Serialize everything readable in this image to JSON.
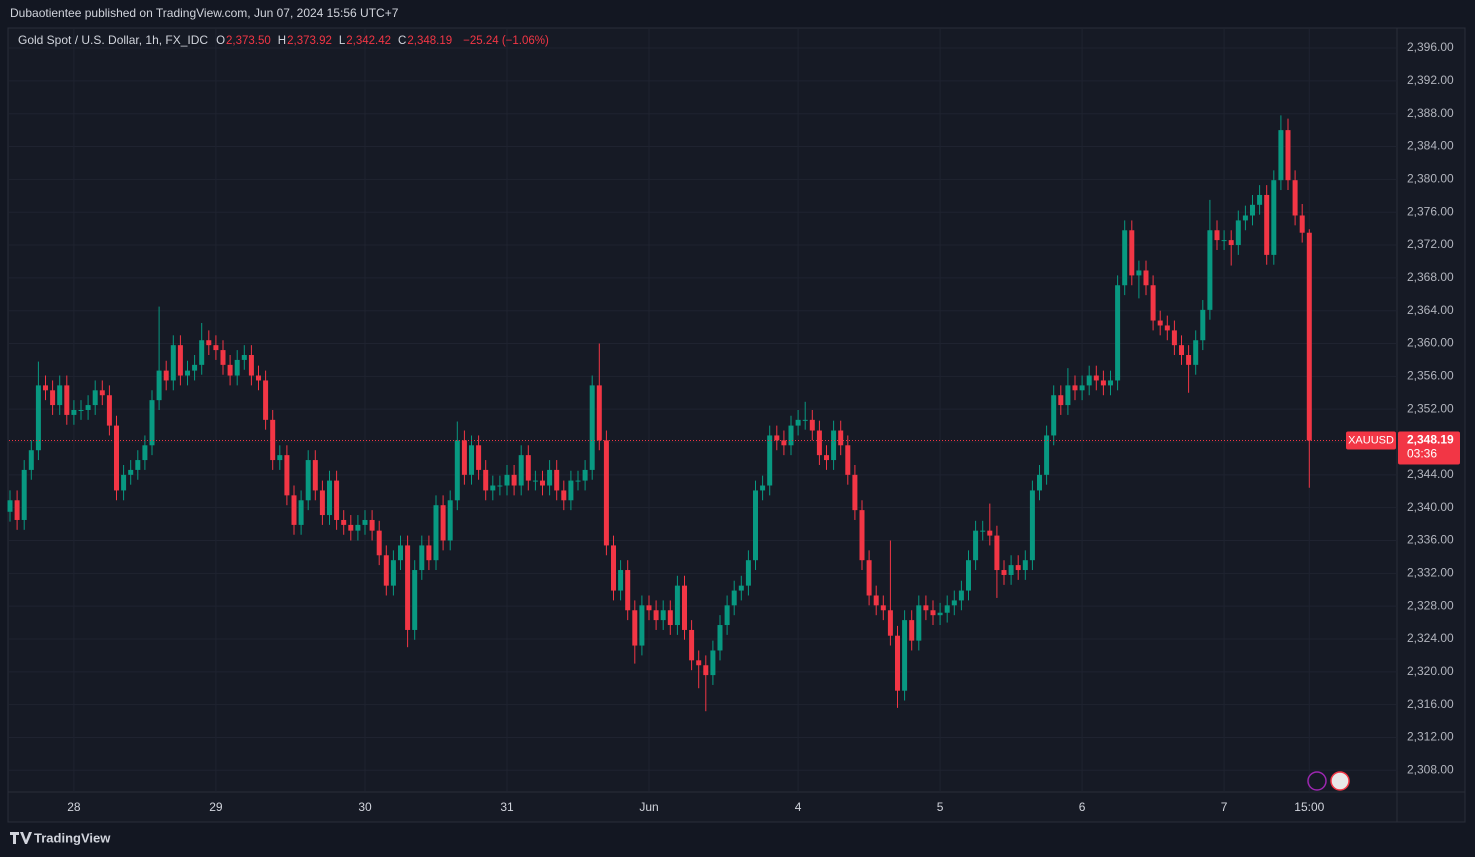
{
  "chart_data": {
    "type": "candlestick",
    "header": "Dubaotientee published on TradingView.com, Jun 07, 2024 15:56 UTC+7",
    "title": "Gold Spot / U.S. Dollar, 1h, FX_IDC",
    "ohlc_legend": {
      "o_key": "O",
      "open": "2,373.50",
      "h_key": "H",
      "high": "2,373.92",
      "l_key": "L",
      "low": "2,342.42",
      "c_key": "C",
      "close": "2,348.19",
      "change": "−25.24 (−1.06%)"
    },
    "symbol": "XAUUSD",
    "countdown": "03:36",
    "footer": "TradingView",
    "up_color": "#089981",
    "down_color": "#f23645",
    "grid": true,
    "open": [
      2339.5,
      2340.9,
      2338.5,
      2344.6,
      2347.0,
      2354.9,
      2354.3,
      2352.5,
      2354.9,
      2351.3,
      2351.9,
      2351.9,
      2352.5,
      2354.3,
      2353.7,
      2350.0,
      2342.1,
      2344.0,
      2344.6,
      2345.8,
      2347.6,
      2353.1,
      2356.7,
      2355.5,
      2359.8,
      2356.1,
      2356.7,
      2357.4,
      2360.4,
      2359.8,
      2359.2,
      2357.4,
      2356.1,
      2358.0,
      2358.6,
      2356.1,
      2355.5,
      2350.7,
      2345.8,
      2346.4,
      2341.5,
      2337.9,
      2340.9,
      2345.8,
      2342.1,
      2339.1,
      2343.3,
      2338.5,
      2337.9,
      2337.2,
      2337.9,
      2338.5,
      2337.2,
      2334.2,
      2330.5,
      2333.6,
      2335.4,
      2325.1,
      2332.4,
      2335.4,
      2333.6,
      2340.3,
      2336.0,
      2340.9,
      2348.2,
      2344.0,
      2347.6,
      2344.6,
      2342.1,
      2342.7,
      2342.7,
      2344.0,
      2342.7,
      2346.4,
      2343.3,
      2343.3,
      2342.7,
      2344.6,
      2342.1,
      2340.9,
      2343.3,
      2343.3,
      2344.6,
      2354.9,
      2348.2,
      2335.4,
      2329.9,
      2332.4,
      2327.5,
      2323.2,
      2328.1,
      2327.5,
      2326.3,
      2327.5,
      2325.7,
      2330.5,
      2325.1,
      2321.4,
      2320.8,
      2319.6,
      2322.6,
      2325.7,
      2328.1,
      2329.9,
      2330.5,
      2333.6,
      2342.1,
      2342.7,
      2348.8,
      2348.2,
      2347.6,
      2350.0,
      2350.7,
      2350.7,
      2349.4,
      2346.4,
      2345.8,
      2349.4,
      2347.6,
      2344.0,
      2339.7,
      2333.6,
      2329.3,
      2328.1,
      2327.5,
      2324.4,
      2317.7,
      2326.3,
      2323.8,
      2328.1,
      2327.5,
      2326.9,
      2327.2,
      2328.1,
      2328.7,
      2329.9,
      2333.6,
      2337.2,
      2337.2,
      2336.6,
      2332.4,
      2331.8,
      2333.0,
      2332.4,
      2333.6,
      2342.1,
      2344.0,
      2348.8,
      2353.7,
      2352.5,
      2354.9,
      2354.3,
      2354.9,
      2356.1,
      2355.5,
      2354.9,
      2355.5,
      2367.1,
      2373.8,
      2368.3,
      2368.9,
      2367.1,
      2362.8,
      2362.2,
      2361.6,
      2359.8,
      2358.6,
      2357.4,
      2360.4,
      2364.1,
      2373.8,
      2372.6,
      2372.6,
      2372.0,
      2375.0,
      2375.6,
      2376.9,
      2378.1,
      2370.8,
      2379.9,
      2386.0,
      2379.9,
      2375.6,
      2373.5
    ],
    "high": [
      2342.1,
      2342.1,
      2345.8,
      2348.2,
      2357.8,
      2356.1,
      2355.5,
      2356.1,
      2356.1,
      2353.1,
      2353.1,
      2353.7,
      2355.5,
      2355.5,
      2354.9,
      2351.2,
      2345.2,
      2345.8,
      2347.0,
      2348.8,
      2354.3,
      2364.5,
      2357.9,
      2361.0,
      2361.0,
      2357.9,
      2358.6,
      2362.5,
      2361.6,
      2361.0,
      2360.4,
      2358.6,
      2359.2,
      2359.8,
      2359.8,
      2357.3,
      2356.7,
      2351.9,
      2347.6,
      2347.6,
      2342.7,
      2342.1,
      2347.0,
      2347.0,
      2343.3,
      2344.5,
      2344.5,
      2339.7,
      2339.1,
      2339.1,
      2339.7,
      2339.7,
      2338.4,
      2335.4,
      2334.8,
      2336.6,
      2336.6,
      2333.6,
      2336.6,
      2336.6,
      2341.5,
      2341.5,
      2342.1,
      2350.5,
      2349.4,
      2348.8,
      2348.8,
      2345.8,
      2343.9,
      2343.9,
      2345.2,
      2345.2,
      2347.6,
      2347.6,
      2344.5,
      2344.5,
      2345.8,
      2345.8,
      2343.3,
      2344.5,
      2344.5,
      2345.8,
      2356.1,
      2360.0,
      2349.4,
      2336.6,
      2333.6,
      2333.6,
      2328.7,
      2329.3,
      2329.3,
      2328.7,
      2328.7,
      2328.7,
      2331.7,
      2331.7,
      2326.3,
      2322.6,
      2322.0,
      2323.8,
      2326.9,
      2329.3,
      2331.1,
      2331.7,
      2334.8,
      2343.3,
      2343.9,
      2350.0,
      2350.0,
      2349.4,
      2351.2,
      2351.9,
      2352.9,
      2351.9,
      2350.6,
      2347.6,
      2350.6,
      2350.6,
      2348.8,
      2345.2,
      2340.9,
      2334.8,
      2330.5,
      2329.3,
      2336.0,
      2325.6,
      2327.5,
      2327.5,
      2329.3,
      2329.3,
      2328.7,
      2328.4,
      2329.3,
      2329.9,
      2331.1,
      2334.8,
      2338.4,
      2338.4,
      2340.5,
      2337.8,
      2333.6,
      2334.2,
      2334.2,
      2334.8,
      2343.3,
      2345.2,
      2350.0,
      2354.9,
      2354.9,
      2357.0,
      2356.1,
      2356.1,
      2357.3,
      2357.3,
      2356.7,
      2356.7,
      2368.3,
      2375.0,
      2375.0,
      2370.1,
      2370.1,
      2368.3,
      2364.0,
      2363.4,
      2362.8,
      2361.0,
      2359.8,
      2361.6,
      2365.3,
      2377.5,
      2375.0,
      2373.8,
      2373.8,
      2376.2,
      2376.8,
      2378.1,
      2379.3,
      2379.3,
      2381.1,
      2387.8,
      2387.4,
      2381.1,
      2377.0,
      2373.92
    ],
    "low": [
      2338.3,
      2337.3,
      2337.3,
      2343.4,
      2345.8,
      2353.1,
      2351.3,
      2351.3,
      2350.1,
      2350.1,
      2350.7,
      2350.7,
      2351.3,
      2352.5,
      2348.8,
      2340.9,
      2340.9,
      2342.8,
      2343.4,
      2344.6,
      2346.4,
      2351.9,
      2354.3,
      2354.3,
      2354.9,
      2354.9,
      2355.5,
      2356.2,
      2358.6,
      2358.0,
      2356.2,
      2354.9,
      2354.9,
      2356.8,
      2354.9,
      2354.3,
      2349.5,
      2344.6,
      2344.6,
      2340.3,
      2336.7,
      2336.7,
      2339.7,
      2340.9,
      2337.9,
      2337.9,
      2337.3,
      2336.7,
      2336.0,
      2336.0,
      2336.7,
      2336.0,
      2333.0,
      2329.3,
      2329.3,
      2332.4,
      2323.0,
      2323.9,
      2331.2,
      2332.4,
      2332.4,
      2334.8,
      2334.8,
      2339.7,
      2342.8,
      2342.8,
      2343.4,
      2340.9,
      2340.9,
      2341.5,
      2341.5,
      2341.5,
      2341.5,
      2342.1,
      2342.1,
      2341.5,
      2341.5,
      2340.9,
      2339.7,
      2339.7,
      2342.1,
      2342.1,
      2343.4,
      2347.0,
      2334.2,
      2328.7,
      2328.7,
      2326.3,
      2321.0,
      2322.0,
      2326.3,
      2325.1,
      2325.1,
      2324.5,
      2324.5,
      2323.9,
      2320.2,
      2318.0,
      2315.2,
      2318.4,
      2321.4,
      2324.5,
      2326.9,
      2328.7,
      2329.3,
      2332.4,
      2340.9,
      2341.5,
      2347.0,
      2346.4,
      2346.4,
      2348.8,
      2349.5,
      2348.2,
      2345.2,
      2344.6,
      2344.6,
      2346.4,
      2342.8,
      2338.5,
      2332.4,
      2328.1,
      2326.9,
      2326.3,
      2323.2,
      2315.6,
      2316.5,
      2322.6,
      2322.6,
      2326.3,
      2325.7,
      2325.7,
      2326.0,
      2326.9,
      2327.5,
      2328.7,
      2332.4,
      2336.0,
      2335.4,
      2329.0,
      2330.6,
      2330.6,
      2331.2,
      2331.2,
      2332.4,
      2340.9,
      2342.8,
      2347.6,
      2351.3,
      2351.3,
      2353.1,
      2353.1,
      2353.7,
      2354.3,
      2353.7,
      2353.7,
      2354.3,
      2365.9,
      2367.1,
      2365.5,
      2365.9,
      2361.6,
      2361.0,
      2360.4,
      2358.6,
      2357.4,
      2354.0,
      2356.2,
      2359.2,
      2362.9,
      2371.4,
      2371.4,
      2369.5,
      2370.8,
      2373.8,
      2374.4,
      2375.7,
      2369.6,
      2369.6,
      2378.7,
      2378.7,
      2374.4,
      2372.3,
      2342.42
    ],
    "close": [
      2340.9,
      2338.5,
      2344.6,
      2347.0,
      2354.9,
      2354.3,
      2352.5,
      2354.9,
      2351.3,
      2351.9,
      2351.9,
      2352.5,
      2354.3,
      2353.7,
      2350.0,
      2342.1,
      2344.0,
      2344.6,
      2345.8,
      2347.6,
      2353.1,
      2356.7,
      2355.5,
      2359.8,
      2356.1,
      2356.7,
      2357.4,
      2360.4,
      2359.8,
      2359.2,
      2357.4,
      2356.1,
      2358.0,
      2358.6,
      2356.1,
      2355.5,
      2350.7,
      2345.8,
      2346.4,
      2341.5,
      2337.9,
      2340.9,
      2345.8,
      2342.1,
      2339.1,
      2343.3,
      2338.5,
      2337.9,
      2337.2,
      2337.9,
      2338.5,
      2337.2,
      2334.2,
      2330.5,
      2333.6,
      2335.4,
      2325.1,
      2332.4,
      2335.4,
      2333.6,
      2340.3,
      2336.0,
      2340.9,
      2348.2,
      2344.0,
      2347.6,
      2344.6,
      2342.1,
      2342.7,
      2342.7,
      2344.0,
      2342.7,
      2346.4,
      2343.3,
      2343.3,
      2342.7,
      2344.6,
      2342.1,
      2340.9,
      2343.3,
      2343.3,
      2344.6,
      2354.9,
      2348.2,
      2335.4,
      2329.9,
      2332.4,
      2327.5,
      2323.2,
      2328.1,
      2327.5,
      2326.3,
      2327.5,
      2325.7,
      2330.5,
      2325.1,
      2321.4,
      2320.8,
      2319.6,
      2322.6,
      2325.7,
      2328.1,
      2329.9,
      2330.5,
      2333.6,
      2342.1,
      2342.7,
      2348.8,
      2348.2,
      2347.6,
      2350.0,
      2350.7,
      2350.7,
      2349.4,
      2346.4,
      2345.8,
      2349.4,
      2347.6,
      2344.0,
      2339.7,
      2333.6,
      2329.3,
      2328.1,
      2327.5,
      2324.4,
      2317.7,
      2326.3,
      2323.8,
      2328.1,
      2327.5,
      2326.9,
      2327.2,
      2328.1,
      2328.7,
      2329.9,
      2333.6,
      2337.2,
      2337.2,
      2336.6,
      2332.4,
      2331.8,
      2333.0,
      2332.4,
      2333.6,
      2342.1,
      2344.0,
      2348.8,
      2353.7,
      2352.5,
      2354.9,
      2354.3,
      2354.9,
      2356.1,
      2355.5,
      2354.9,
      2355.5,
      2367.1,
      2373.8,
      2368.3,
      2368.9,
      2367.1,
      2362.8,
      2362.2,
      2361.6,
      2359.8,
      2358.6,
      2357.4,
      2360.4,
      2364.1,
      2373.8,
      2372.6,
      2372.6,
      2372.0,
      2375.0,
      2375.6,
      2376.9,
      2378.1,
      2370.8,
      2379.9,
      2386.0,
      2379.9,
      2375.6,
      2373.5,
      2348.19
    ],
    "ylim": [
      2305.6,
      2398.2
    ],
    "yticks": [
      {
        "value": 2308,
        "label": "2,308.00"
      },
      {
        "value": 2312,
        "label": "2,312.00"
      },
      {
        "value": 2316,
        "label": "2,316.00"
      },
      {
        "value": 2320,
        "label": "2,320.00"
      },
      {
        "value": 2324,
        "label": "2,324.00"
      },
      {
        "value": 2328,
        "label": "2,328.00"
      },
      {
        "value": 2332,
        "label": "2,332.00"
      },
      {
        "value": 2336,
        "label": "2,336.00"
      },
      {
        "value": 2340,
        "label": "2,340.00"
      },
      {
        "value": 2344,
        "label": "2,344.00"
      },
      {
        "value": 2348,
        "label": "2,348.00"
      },
      {
        "value": 2352,
        "label": "2,352.00"
      },
      {
        "value": 2356,
        "label": "2,356.00"
      },
      {
        "value": 2360,
        "label": "2,360.00"
      },
      {
        "value": 2364,
        "label": "2,364.00"
      },
      {
        "value": 2368,
        "label": "2,368.00"
      },
      {
        "value": 2372,
        "label": "2,372.00"
      },
      {
        "value": 2376,
        "label": "2,376.00"
      },
      {
        "value": 2380,
        "label": "2,380.00"
      },
      {
        "value": 2384,
        "label": "2,384.00"
      },
      {
        "value": 2388,
        "label": "2,388.00"
      },
      {
        "value": 2392,
        "label": "2,392.00"
      },
      {
        "value": 2396,
        "label": "2,396.00"
      }
    ],
    "xticks": [
      {
        "value": 9,
        "label": "28"
      },
      {
        "value": 29,
        "label": "29"
      },
      {
        "value": 50,
        "label": "30"
      },
      {
        "value": 70,
        "label": "31"
      },
      {
        "value": 90,
        "label": "Jun"
      },
      {
        "value": 111,
        "label": "4"
      },
      {
        "value": 131,
        "label": "5"
      },
      {
        "value": 151,
        "label": "6"
      },
      {
        "value": 171,
        "label": "7"
      },
      {
        "value": 183,
        "label": "15:00"
      }
    ]
  }
}
